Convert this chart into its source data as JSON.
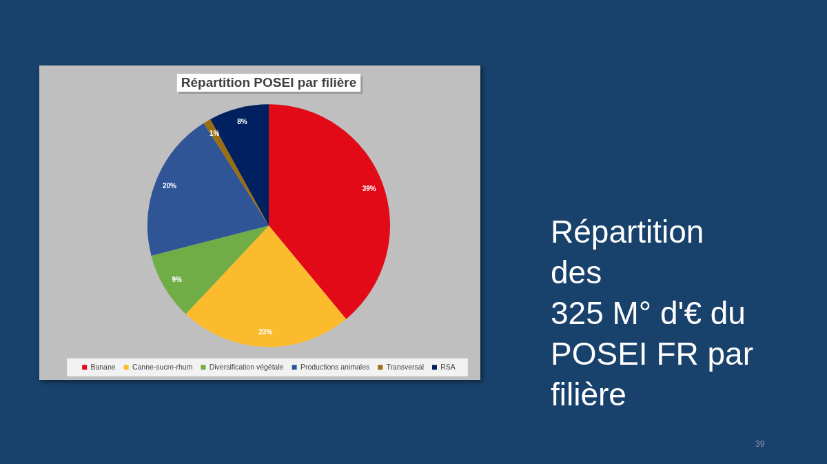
{
  "chart_data": {
    "type": "pie",
    "title": "Répartition POSEI par filière",
    "subtitle": "Répartition des\n325 M° d'€ du POSEI FR par filière",
    "categories": [
      "Banane",
      "Canne-sucre-rhum",
      "Diversification végétale",
      "Productions animales",
      "Transversal",
      "RSA"
    ],
    "values": [
      39,
      23,
      9,
      20,
      1,
      8
    ],
    "colors": [
      "#e20a17",
      "#fbbb2d",
      "#70ad47",
      "#2f5597",
      "#9c6e12",
      "#002060"
    ],
    "value_labels": [
      "39%",
      "23%",
      "9%",
      "20%",
      "1%",
      "8%"
    ],
    "legend": "bottom",
    "annotations": [
      "39"
    ]
  }
}
